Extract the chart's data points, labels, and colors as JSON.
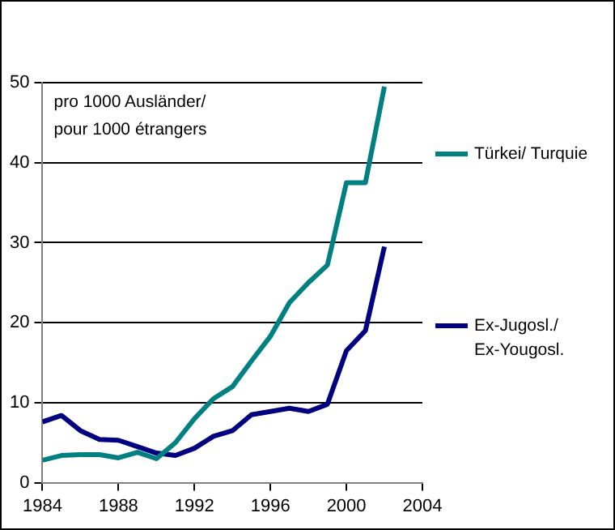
{
  "chart_data": {
    "type": "line",
    "x": [
      1984,
      1985,
      1986,
      1987,
      1988,
      1989,
      1990,
      1991,
      1992,
      1993,
      1994,
      1995,
      1996,
      1997,
      1998,
      1999,
      2000,
      2001,
      2002
    ],
    "series": [
      {
        "name": "Türkei/ Turquie",
        "color": "#008080",
        "values": [
          2.8,
          3.4,
          3.5,
          3.5,
          3.1,
          3.8,
          3.0,
          5.0,
          8.0,
          10.5,
          12.0,
          15.2,
          18.3,
          22.5,
          25.0,
          27.2,
          37.5,
          37.5,
          49.5
        ]
      },
      {
        "name": "Ex-Jugosl./ Ex-Yougosl.",
        "color": "#000080",
        "values": [
          7.6,
          8.4,
          6.5,
          5.4,
          5.3,
          4.5,
          3.7,
          3.4,
          4.3,
          5.8,
          6.5,
          8.5,
          8.9,
          9.3,
          8.9,
          9.8,
          16.5,
          19.0,
          29.5
        ]
      }
    ],
    "xlim": [
      1984,
      2004
    ],
    "xticks": [
      1984,
      1988,
      1992,
      1996,
      2000,
      2004
    ],
    "ylim": [
      0,
      50
    ],
    "yticks": [
      0,
      10,
      20,
      30,
      40,
      50
    ],
    "grid": "y",
    "legend": "right",
    "marker": "none",
    "line_style": "solid",
    "annotations": [
      "pro 1000 Ausländer/ pour 1000 étrangers"
    ]
  }
}
